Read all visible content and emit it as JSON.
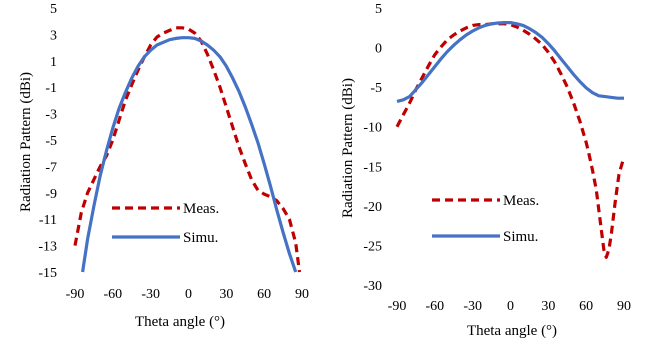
{
  "chart_data": [
    {
      "type": "line",
      "title": "",
      "xlabel": "Theta angle (°)",
      "ylabel": "Radiation Pattern (dBi)",
      "xlim": [
        -90,
        90
      ],
      "ylim": [
        -15,
        5
      ],
      "xticks": [
        "-90",
        "-60",
        "-30",
        "0",
        "30",
        "60",
        "90"
      ],
      "yticks": [
        "-15",
        "-13",
        "-11",
        "-9",
        "-7",
        "-5",
        "-3",
        "-1",
        "1",
        "3",
        "5"
      ],
      "grid": false,
      "legend": "bottom-left",
      "series": [
        {
          "name": "Meas.",
          "color": "#c00000",
          "dash": "dashed",
          "x": [
            -90,
            -85,
            -80,
            -75,
            -70,
            -65,
            -60,
            -55,
            -50,
            -45,
            -40,
            -35,
            -30,
            -25,
            -20,
            -15,
            -10,
            -5,
            0,
            5,
            10,
            15,
            20,
            25,
            30,
            35,
            40,
            45,
            50,
            55,
            60,
            65,
            70,
            75,
            80,
            85,
            88
          ],
          "values": [
            -13,
            -10.5,
            -9,
            -8,
            -7,
            -6.2,
            -5,
            -3.5,
            -2,
            -0.8,
            0.3,
            1.3,
            2.2,
            2.8,
            3.1,
            3.3,
            3.5,
            3.5,
            3.4,
            3.1,
            2.5,
            1.5,
            0.3,
            -1,
            -2.5,
            -4,
            -5.5,
            -6.8,
            -8,
            -8.8,
            -9.1,
            -9.3,
            -9.6,
            -10.2,
            -11,
            -12.8,
            -15
          ]
        },
        {
          "name": "Simu.",
          "color": "#4472c4",
          "dash": "solid",
          "x": [
            -84,
            -80,
            -75,
            -70,
            -65,
            -60,
            -55,
            -50,
            -45,
            -40,
            -35,
            -30,
            -25,
            -20,
            -15,
            -10,
            -5,
            0,
            5,
            10,
            15,
            20,
            25,
            30,
            35,
            40,
            45,
            50,
            55,
            60,
            65,
            70,
            75,
            80,
            85
          ],
          "values": [
            -15,
            -12.5,
            -10,
            -7.7,
            -5.8,
            -4.1,
            -2.6,
            -1.4,
            -0.3,
            0.6,
            1.3,
            1.8,
            2.2,
            2.4,
            2.6,
            2.7,
            2.75,
            2.75,
            2.7,
            2.5,
            2.2,
            1.8,
            1.3,
            0.6,
            -0.3,
            -1.3,
            -2.5,
            -3.8,
            -5.2,
            -6.8,
            -8.5,
            -10.3,
            -12,
            -13.6,
            -15
          ]
        }
      ]
    },
    {
      "type": "line",
      "title": "",
      "xlabel": "Theta angle (°)",
      "ylabel": "Radiation Pattern (dBi)",
      "xlim": [
        -90,
        90
      ],
      "ylim": [
        -30,
        5
      ],
      "xticks": [
        "-90",
        "-60",
        "-30",
        "0",
        "30",
        "60",
        "90"
      ],
      "yticks": [
        "-30",
        "-25",
        "-20",
        "-15",
        "-10",
        "-5",
        "0",
        "5"
      ],
      "grid": false,
      "legend": "bottom-left",
      "series": [
        {
          "name": "Meas.",
          "color": "#c00000",
          "dash": "dashed",
          "x": [
            -90,
            -85,
            -80,
            -75,
            -70,
            -65,
            -60,
            -55,
            -50,
            -45,
            -40,
            -35,
            -30,
            -25,
            -20,
            -15,
            -10,
            -5,
            0,
            5,
            10,
            15,
            20,
            25,
            30,
            35,
            40,
            45,
            50,
            55,
            60,
            62,
            65,
            68,
            70,
            72,
            74,
            76,
            78,
            80,
            83,
            86,
            90
          ],
          "values": [
            -10,
            -8.5,
            -7,
            -5.3,
            -3.8,
            -2.3,
            -0.9,
            0.1,
            1,
            1.6,
            2.1,
            2.5,
            2.8,
            2.9,
            2.9,
            3,
            3,
            3,
            2.9,
            2.6,
            2.2,
            1.7,
            1.1,
            0.4,
            -0.6,
            -1.8,
            -3.3,
            -5,
            -7,
            -9.3,
            -12,
            -13.3,
            -15.5,
            -18,
            -20.5,
            -23,
            -25.5,
            -26.5,
            -25.5,
            -23.5,
            -19.5,
            -16,
            -13.8
          ]
        },
        {
          "name": "Simu.",
          "color": "#4472c4",
          "dash": "solid",
          "x": [
            -90,
            -85,
            -80,
            -75,
            -70,
            -65,
            -60,
            -55,
            -50,
            -45,
            -40,
            -35,
            -30,
            -25,
            -20,
            -15,
            -10,
            -5,
            0,
            5,
            10,
            15,
            20,
            25,
            30,
            35,
            40,
            45,
            50,
            55,
            60,
            65,
            70,
            75,
            80,
            85,
            90
          ],
          "values": [
            -6.8,
            -6.6,
            -6.2,
            -5.3,
            -4.4,
            -3.4,
            -2.4,
            -1.4,
            -0.5,
            0.3,
            1,
            1.6,
            2.1,
            2.5,
            2.8,
            3,
            3.1,
            3.15,
            3.15,
            3,
            2.8,
            2.4,
            1.9,
            1.3,
            0.5,
            -0.4,
            -1.4,
            -2.4,
            -3.4,
            -4.3,
            -5.1,
            -5.7,
            -6.1,
            -6.2,
            -6.3,
            -6.4,
            -6.4
          ]
        }
      ]
    }
  ]
}
